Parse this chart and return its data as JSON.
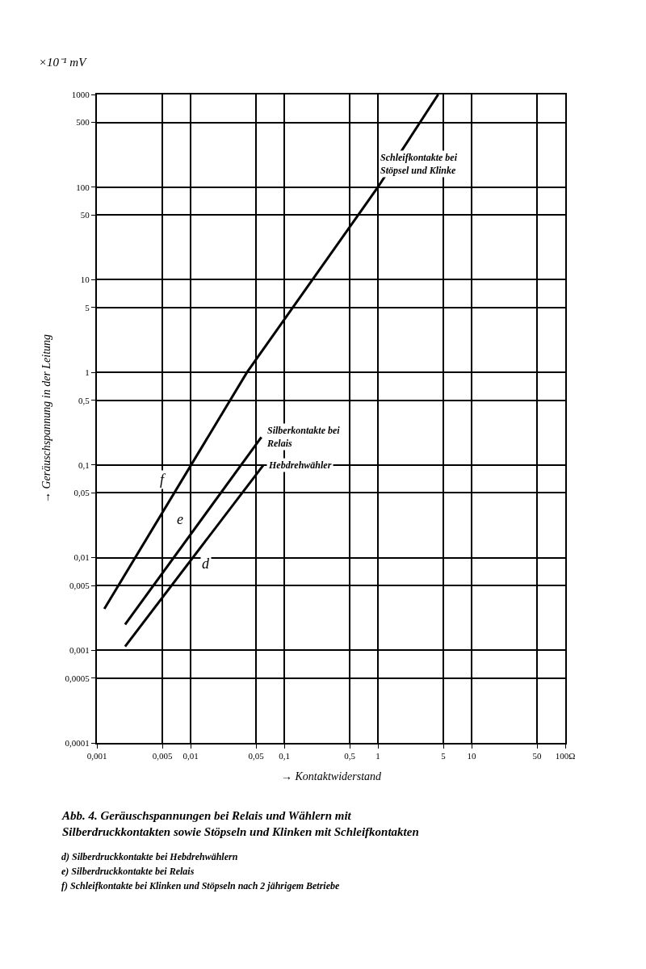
{
  "chart_data": {
    "type": "line",
    "title": "Abb. 4. Geräuschspannungen bei Relais und Wählern mit Silberdruckkontakten sowie Stöpseln und Klinken mit Schleifkontakten",
    "xlabel": "→ Kontaktwiderstand",
    "ylabel": "→ Geräuschspannung in der Leitung",
    "log": "xy",
    "grid": true,
    "legend": false,
    "marker": "none",
    "line_style": "solid",
    "xlim": [
      0.001,
      100
    ],
    "ylim": [
      0.0001,
      1000
    ],
    "xticks": [
      {
        "value": 0.001,
        "label": "0,001"
      },
      {
        "value": 0.005,
        "label": "0,005"
      },
      {
        "value": 0.01,
        "label": "0,01"
      },
      {
        "value": 0.05,
        "label": "0,05"
      },
      {
        "value": 0.1,
        "label": "0,1"
      },
      {
        "value": 0.5,
        "label": "0,5"
      },
      1,
      5,
      10,
      50,
      {
        "value": 100,
        "label": "100Ω"
      }
    ],
    "yticks": [
      {
        "value": 0.0001,
        "label": "0,0001"
      },
      {
        "value": 0.0005,
        "label": "0,0005"
      },
      {
        "value": 0.001,
        "label": "0,001"
      },
      {
        "value": 0.005,
        "label": "0,005"
      },
      {
        "value": 0.01,
        "label": "0,01"
      },
      {
        "value": 0.05,
        "label": "0,05"
      },
      {
        "value": 0.1,
        "label": "0,1"
      },
      {
        "value": 0.5,
        "label": "0,5"
      },
      1,
      5,
      10,
      50,
      100,
      500,
      1000
    ],
    "series": [
      {
        "name": "f",
        "color": "#000000",
        "x": [
          0.0012,
          0.04,
          1,
          4.4
        ],
        "values": [
          0.0028,
          1,
          100,
          1000
        ]
      },
      {
        "name": "e",
        "color": "#000000",
        "x": [
          0.002,
          0.057
        ],
        "values": [
          0.0019,
          0.2
        ]
      },
      {
        "name": "d",
        "color": "#000000",
        "x": [
          0.002,
          0.06
        ],
        "values": [
          0.0011,
          0.1
        ]
      }
    ],
    "annotations": [
      "×10⁻¹ mV",
      "Schleifkontakte bei\nStöpsel und Klinke",
      "Silberkontakte bei\nRelais",
      "Hebdrehwähler",
      "d) Silberdruckkontakte bei Hebdrehwählern",
      "e) Silberdruckkontakte bei Relais",
      "f) Schleifkontakte bei Klinken und Stöpseln nach 2 jährigem Betriebe"
    ]
  }
}
